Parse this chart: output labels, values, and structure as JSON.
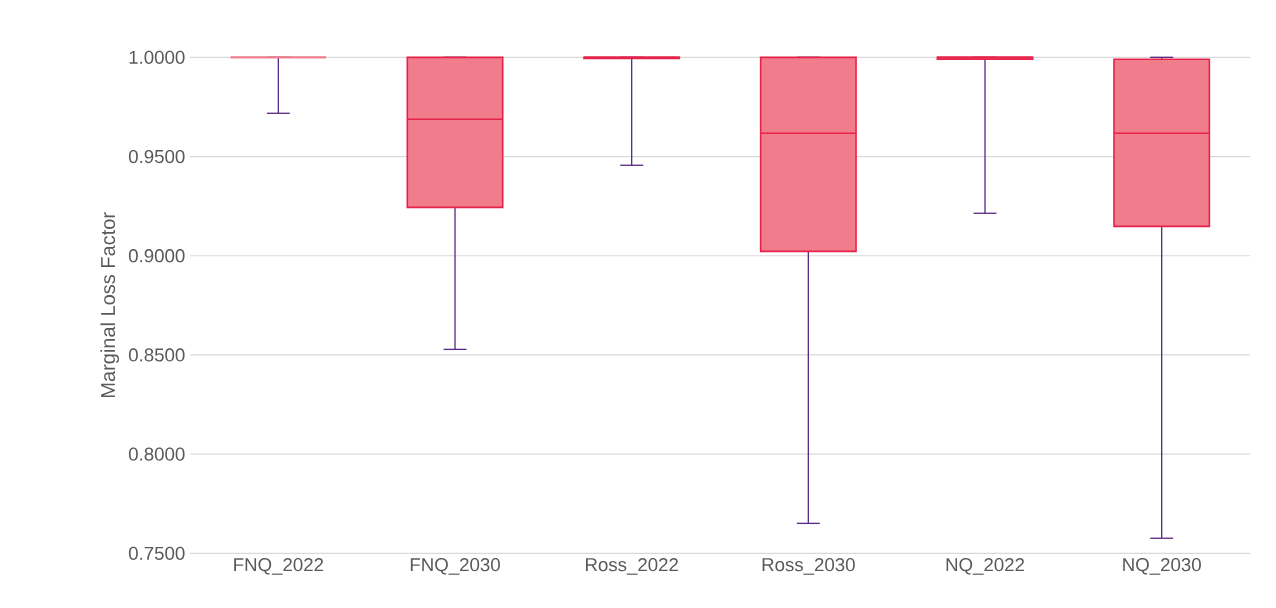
{
  "chart_data": {
    "type": "box",
    "ylabel": "Marginal Loss Factor",
    "categories": [
      "FNQ_2022",
      "FNQ_2030",
      "Ross_2022",
      "Ross_2030",
      "NQ_2022",
      "NQ_2030"
    ],
    "boxes": [
      {
        "low": 0.9718,
        "q1": 1.0,
        "median": 1.0,
        "q3": 1.0,
        "high": 1.0
      },
      {
        "low": 0.8528,
        "q1": 0.9244,
        "median": 0.9688,
        "q3": 1.0,
        "high": 1.0
      },
      {
        "low": 0.9456,
        "q1": 0.9995,
        "median": 1.0,
        "q3": 1.0,
        "high": 1.0
      },
      {
        "low": 0.7651,
        "q1": 0.9022,
        "median": 0.9617,
        "q3": 1.0,
        "high": 1.0
      },
      {
        "low": 0.9214,
        "q1": 0.999,
        "median": 1.0,
        "q3": 1.0,
        "high": 1.0
      },
      {
        "low": 0.7576,
        "q1": 0.9148,
        "median": 0.9617,
        "q3": 0.999,
        "high": 1.0
      }
    ],
    "color": "#f07c8c",
    "ylim": [
      0.75,
      1.0
    ],
    "yticks": [
      {
        "value": 0.75,
        "label": "0.7500"
      },
      {
        "value": 0.8,
        "label": "0.8000"
      },
      {
        "value": 0.85,
        "label": "0.8500"
      },
      {
        "value": 0.9,
        "label": "0.9000"
      },
      {
        "value": 0.95,
        "label": "0.9500"
      },
      {
        "value": 1.0,
        "label": "1.0000"
      }
    ],
    "grid": "y"
  }
}
